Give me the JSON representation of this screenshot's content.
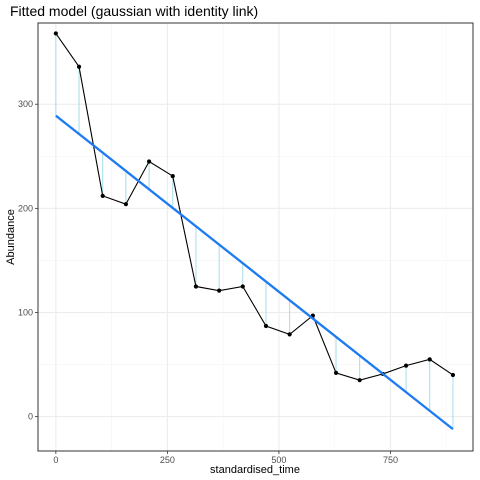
{
  "chart_data": {
    "type": "line",
    "title": "Fitted model (gaussian with identity link)",
    "xlabel": "standardised_time",
    "ylabel": "Abundance",
    "xlim": [
      -40,
      935
    ],
    "ylim": [
      -33,
      378
    ],
    "x_ticks": [
      0,
      250,
      500,
      750
    ],
    "y_ticks": [
      0,
      100,
      200,
      300
    ],
    "x_tick_labels": [
      "0",
      "250",
      "500",
      "750"
    ],
    "y_tick_labels": [
      "0",
      "100",
      "200",
      "300"
    ],
    "grid": true,
    "observed": {
      "x": [
        0,
        52,
        105,
        157,
        209,
        262,
        314,
        366,
        419,
        471,
        524,
        576,
        628,
        681,
        733,
        785,
        838,
        890
      ],
      "y": [
        368,
        336,
        212,
        204,
        245,
        231,
        125,
        121,
        125,
        87,
        79,
        97,
        42,
        35,
        41,
        49,
        55,
        40
      ]
    },
    "fitted_line": {
      "x": [
        0,
        890
      ],
      "y": [
        289,
        -12
      ]
    },
    "colors": {
      "observed": "#000000",
      "fitted": "#1E7BF2",
      "residual": "#A6DCEB",
      "panel_border": "#333333",
      "grid_major": "#EBEBEB",
      "grid_minor": "#F5F5F5"
    }
  }
}
